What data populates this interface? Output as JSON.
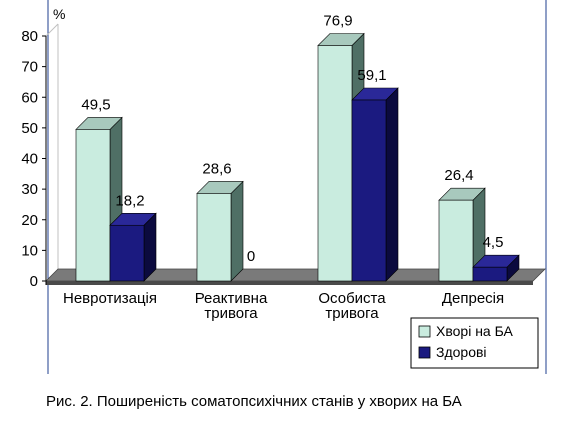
{
  "chart_data": {
    "type": "bar",
    "bar_style": "3d",
    "unit_label": "%",
    "categories": [
      [
        "Невротизація"
      ],
      [
        "Реактивна",
        "тривога"
      ],
      [
        "Особиста",
        "тривога"
      ],
      [
        "Депресія"
      ]
    ],
    "series": [
      {
        "name": "Хворі на БА",
        "values": [
          49.5,
          28.6,
          76.9,
          26.4
        ],
        "labels": [
          "49,5",
          "28,6",
          "76,9",
          "26,4"
        ],
        "color": "#c9ecdf",
        "side_color": "#4f6f65",
        "top_color": "#a8c9bd"
      },
      {
        "name": "Здорові",
        "values": [
          18.2,
          0,
          59.1,
          4.5
        ],
        "labels": [
          "18,2",
          "0",
          "59,1",
          "4,5"
        ],
        "color": "#1b1a80",
        "side_color": "#0b0a3e",
        "top_color": "#2a2898"
      }
    ],
    "ylim": [
      0,
      80
    ],
    "yticks": [
      0,
      10,
      20,
      30,
      40,
      50,
      60,
      70,
      80
    ],
    "grid": false,
    "legend_position": "bottom-right",
    "floor_color": "#7a7a7a",
    "wall_color": "#c0c0c0",
    "frame_color": "#1f3f8f"
  },
  "caption": "Рис. 2. Поширеність соматопсихічних станів у хворих на БА"
}
